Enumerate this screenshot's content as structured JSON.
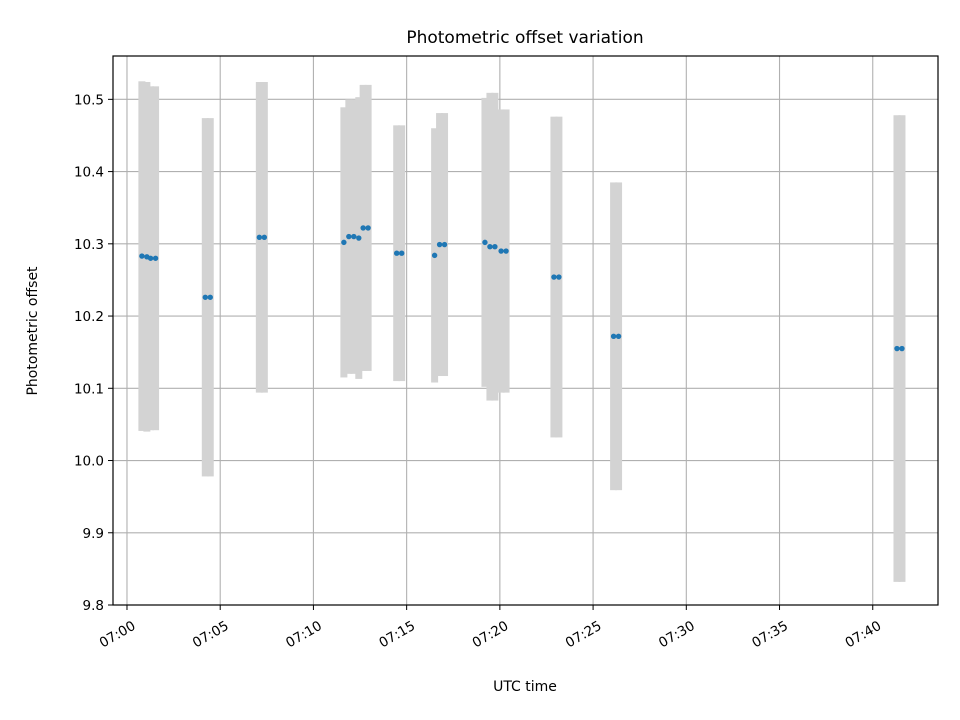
{
  "chart_data": {
    "type": "scatter",
    "title": "Photometric offset variation",
    "xlabel": "UTC time",
    "ylabel": "Photometric offset",
    "x_ticks": [
      "07:00",
      "07:05",
      "07:10",
      "07:15",
      "07:20",
      "07:25",
      "07:30",
      "07:35",
      "07:40"
    ],
    "y_ticks": [
      "9.8",
      "9.9",
      "10.0",
      "10.1",
      "10.2",
      "10.3",
      "10.4",
      "10.5"
    ],
    "xlim": [
      "06:59:15",
      "07:43:30"
    ],
    "ylim": [
      9.8,
      10.56
    ],
    "grid": true,
    "colors": {
      "marker": "#1f77b4",
      "errorbar": "#d3d3d3",
      "grid": "#b0b0b0"
    },
    "points": [
      {
        "x": "07:00:48",
        "y": 10.283,
        "err": 0.242
      },
      {
        "x": "07:01:04",
        "y": 10.282,
        "err": 0.242
      },
      {
        "x": "07:01:16",
        "y": 10.28,
        "err": 0.238
      },
      {
        "x": "07:01:32",
        "y": 10.28,
        "err": 0.238
      },
      {
        "x": "07:04:12",
        "y": 10.226,
        "err": 0.248
      },
      {
        "x": "07:04:28",
        "y": 10.226,
        "err": 0.248
      },
      {
        "x": "07:07:06",
        "y": 10.309,
        "err": 0.215
      },
      {
        "x": "07:07:22",
        "y": 10.309,
        "err": 0.215
      },
      {
        "x": "07:11:38",
        "y": 10.302,
        "err": 0.187
      },
      {
        "x": "07:11:54",
        "y": 10.31,
        "err": 0.19
      },
      {
        "x": "07:12:10",
        "y": 10.31,
        "err": 0.19
      },
      {
        "x": "07:12:26",
        "y": 10.308,
        "err": 0.195
      },
      {
        "x": "07:12:40",
        "y": 10.322,
        "err": 0.198
      },
      {
        "x": "07:12:56",
        "y": 10.322,
        "err": 0.198
      },
      {
        "x": "07:14:28",
        "y": 10.287,
        "err": 0.177
      },
      {
        "x": "07:14:44",
        "y": 10.287,
        "err": 0.177
      },
      {
        "x": "07:16:30",
        "y": 10.284,
        "err": 0.176
      },
      {
        "x": "07:16:46",
        "y": 10.299,
        "err": 0.182
      },
      {
        "x": "07:17:02",
        "y": 10.299,
        "err": 0.182
      },
      {
        "x": "07:19:12",
        "y": 10.302,
        "err": 0.2
      },
      {
        "x": "07:19:28",
        "y": 10.296,
        "err": 0.213
      },
      {
        "x": "07:19:44",
        "y": 10.296,
        "err": 0.213
      },
      {
        "x": "07:20:04",
        "y": 10.29,
        "err": 0.196
      },
      {
        "x": "07:20:20",
        "y": 10.29,
        "err": 0.196
      },
      {
        "x": "07:22:54",
        "y": 10.254,
        "err": 0.222
      },
      {
        "x": "07:23:10",
        "y": 10.254,
        "err": 0.222
      },
      {
        "x": "07:26:06",
        "y": 10.172,
        "err": 0.213
      },
      {
        "x": "07:26:22",
        "y": 10.172,
        "err": 0.213
      },
      {
        "x": "07:41:18",
        "y": 10.155,
        "err": 0.323
      },
      {
        "x": "07:41:34",
        "y": 10.155,
        "err": 0.323
      }
    ]
  }
}
